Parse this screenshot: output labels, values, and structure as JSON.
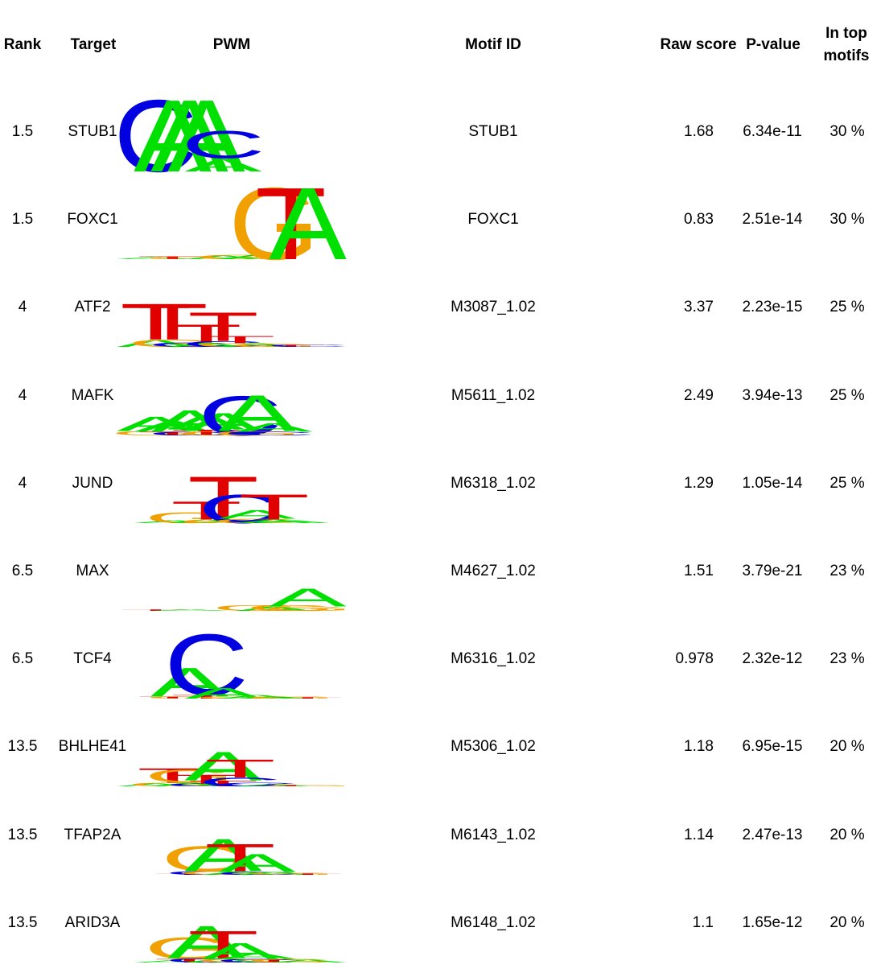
{
  "header": {
    "rank": "Rank",
    "target": "Target",
    "pwm": "PWM",
    "motif_id": "Motif ID",
    "raw_score": "Raw score",
    "p_value": "P-value",
    "in_top_line1": "In top",
    "in_top_line2": "motifs"
  },
  "colors": {
    "A": "#00e000",
    "C": "#0000e0",
    "G": "#f0a000",
    "T": "#e00000"
  },
  "rows": [
    {
      "rank": "1.5",
      "target": "STUB1",
      "motif_id": "STUB1",
      "raw_score": "1.68",
      "p_value": "6.34e-11",
      "in_top": "30 %",
      "pwm": [
        {
          "x": 0,
          "s": [
            [
              "C",
              1.0
            ]
          ]
        },
        {
          "x": 1,
          "s": [
            [
              "A",
              1.0
            ]
          ]
        },
        {
          "x": 2,
          "s": [
            [
              "A",
              1.0
            ]
          ]
        },
        {
          "x": 3,
          "s": [
            [
              "A",
              1.0
            ]
          ]
        },
        {
          "x": 4,
          "s": [
            [
              "A",
              0.18
            ],
            [
              "C",
              0.38
            ]
          ]
        }
      ]
    },
    {
      "rank": "1.5",
      "target": "FOXC1",
      "motif_id": "FOXC1",
      "raw_score": "0.83",
      "p_value": "2.51e-14",
      "in_top": "30 %",
      "pwm": [
        {
          "x": 0,
          "s": [
            [
              "A",
              0.03
            ]
          ]
        },
        {
          "x": 1,
          "s": [
            [
              "T",
              0.04
            ]
          ]
        },
        {
          "x": 2,
          "s": [
            [
              "G",
              0.03
            ]
          ]
        },
        {
          "x": 4,
          "s": [
            [
              "A",
              0.05
            ]
          ]
        },
        {
          "x": 5,
          "s": [
            [
              "G",
              0.06
            ]
          ]
        },
        {
          "x": 6,
          "s": [
            [
              "A",
              0.06
            ]
          ]
        },
        {
          "x": 7,
          "s": [
            [
              "G",
              1.0
            ]
          ]
        },
        {
          "x": 8,
          "s": [
            [
              "T",
              1.0
            ]
          ]
        },
        {
          "x": 9,
          "s": [
            [
              "A",
              1.0
            ]
          ]
        }
      ]
    },
    {
      "rank": "4",
      "target": "ATF2",
      "motif_id": "M3087_1.02",
      "raw_score": "3.37",
      "p_value": "2.23e-15",
      "in_top": "25 %",
      "pwm": [
        {
          "x": 0,
          "s": [
            [
              "A",
              0.1
            ],
            [
              "T",
              0.5
            ]
          ]
        },
        {
          "x": 1,
          "s": [
            [
              "G",
              0.1
            ],
            [
              "T",
              0.5
            ]
          ]
        },
        {
          "x": 2,
          "s": [
            [
              "C",
              0.06
            ]
          ]
        },
        {
          "x": 3,
          "s": [
            [
              "A",
              0.06
            ],
            [
              "T",
              0.25
            ]
          ]
        },
        {
          "x": 4,
          "s": [
            [
              "C",
              0.08
            ],
            [
              "T",
              0.4
            ]
          ]
        },
        {
          "x": 5,
          "s": [
            [
              "G",
              0.05
            ],
            [
              "T",
              0.1
            ]
          ]
        },
        {
          "x": 6,
          "s": [
            [
              "A",
              0.05
            ]
          ]
        },
        {
          "x": 7,
          "s": [
            [
              "G",
              0.04
            ]
          ]
        },
        {
          "x": 8,
          "s": [
            [
              "T",
              0.03
            ]
          ]
        },
        {
          "x": 9,
          "s": [
            [
              "C",
              0.03
            ]
          ]
        }
      ]
    },
    {
      "rank": "4",
      "target": "MAFK",
      "motif_id": "M5611_1.02",
      "raw_score": "2.49",
      "p_value": "3.94e-13",
      "in_top": "25 %",
      "pwm": [
        {
          "x": 0,
          "s": [
            [
              "G",
              0.06
            ],
            [
              "A",
              0.2
            ]
          ]
        },
        {
          "x": 1,
          "s": [
            [
              "T",
              0.05
            ],
            [
              "A",
              0.15
            ]
          ]
        },
        {
          "x": 2,
          "s": [
            [
              "C",
              0.05
            ],
            [
              "A",
              0.3
            ]
          ]
        },
        {
          "x": 3,
          "s": [
            [
              "T",
              0.08
            ],
            [
              "A",
              0.2
            ]
          ]
        },
        {
          "x": 4,
          "s": [
            [
              "G",
              0.06
            ],
            [
              "A",
              0.25
            ]
          ]
        },
        {
          "x": 5,
          "s": [
            [
              "C",
              0.55
            ]
          ]
        },
        {
          "x": 6,
          "s": [
            [
              "G",
              0.06
            ],
            [
              "A",
              0.5
            ]
          ]
        },
        {
          "x": 7,
          "s": [
            [
              "C",
              0.05
            ],
            [
              "A",
              0.12
            ]
          ]
        }
      ]
    },
    {
      "rank": "4",
      "target": "JUND",
      "motif_id": "M6318_1.02",
      "raw_score": "1.29",
      "p_value": "1.05e-14",
      "in_top": "25 %",
      "pwm": [
        {
          "x": 1,
          "s": [
            [
              "A",
              0.04
            ]
          ]
        },
        {
          "x": 2,
          "s": [
            [
              "G",
              0.15
            ]
          ]
        },
        {
          "x": 3,
          "s": [
            [
              "A",
              0.05
            ],
            [
              "T",
              0.25
            ]
          ]
        },
        {
          "x": 4,
          "s": [
            [
              "G",
              0.05
            ],
            [
              "T",
              0.6
            ]
          ]
        },
        {
          "x": 5,
          "s": [
            [
              "C",
              0.4
            ]
          ]
        },
        {
          "x": 6,
          "s": [
            [
              "G",
              0.06
            ],
            [
              "A",
              0.12
            ]
          ]
        },
        {
          "x": 7,
          "s": [
            [
              "A",
              0.05
            ],
            [
              "T",
              0.35
            ]
          ]
        },
        {
          "x": 8,
          "s": [
            [
              "A",
              0.04
            ]
          ]
        }
      ]
    },
    {
      "rank": "6.5",
      "target": "MAX",
      "motif_id": "M4627_1.02",
      "raw_score": "1.51",
      "p_value": "3.79e-21",
      "in_top": "23 %",
      "pwm": [
        {
          "x": 0,
          "s": [
            [
              "T",
              0.02
            ]
          ]
        },
        {
          "x": 2,
          "s": [
            [
              "A",
              0.02
            ]
          ]
        },
        {
          "x": 6,
          "s": [
            [
              "G",
              0.08
            ]
          ]
        },
        {
          "x": 7,
          "s": [
            [
              "A",
              0.06
            ]
          ]
        },
        {
          "x": 8,
          "s": [
            [
              "G",
              0.08
            ]
          ]
        },
        {
          "x": 9,
          "s": [
            [
              "G",
              0.06
            ],
            [
              "A",
              0.25
            ]
          ]
        }
      ]
    },
    {
      "rank": "6.5",
      "target": "TCF4",
      "motif_id": "M6316_1.02",
      "raw_score": "0.978",
      "p_value": "2.32e-12",
      "in_top": "23 %",
      "pwm": [
        {
          "x": 1,
          "s": [
            [
              "T",
              0.03
            ]
          ]
        },
        {
          "x": 2,
          "s": [
            [
              "G",
              0.03
            ],
            [
              "A",
              0.4
            ]
          ]
        },
        {
          "x": 3,
          "s": [
            [
              "T",
              0.05
            ],
            [
              "C",
              0.85
            ]
          ]
        },
        {
          "x": 4,
          "s": [
            [
              "A",
              0.15
            ]
          ]
        },
        {
          "x": 5,
          "s": [
            [
              "G",
              0.03
            ]
          ]
        },
        {
          "x": 6,
          "s": [
            [
              "A",
              0.05
            ]
          ]
        },
        {
          "x": 7,
          "s": [
            [
              "A",
              0.03
            ]
          ]
        },
        {
          "x": 8,
          "s": [
            [
              "G",
              0.03
            ]
          ]
        },
        {
          "x": 9,
          "s": [
            [
              "T",
              0.02
            ]
          ]
        }
      ]
    },
    {
      "rank": "13.5",
      "target": "BHLHE41",
      "motif_id": "M5306_1.02",
      "raw_score": "1.18",
      "p_value": "6.95e-15",
      "in_top": "20 %",
      "pwm": [
        {
          "x": 0,
          "s": [
            [
              "A",
              0.04
            ]
          ]
        },
        {
          "x": 1,
          "s": [
            [
              "G",
              0.05
            ],
            [
              "T",
              0.2
            ]
          ]
        },
        {
          "x": 2,
          "s": [
            [
              "A",
              0.05
            ],
            [
              "G",
              0.18
            ]
          ]
        },
        {
          "x": 3,
          "s": [
            [
              "C",
              0.04
            ],
            [
              "T",
              0.12
            ]
          ]
        },
        {
          "x": 4,
          "s": [
            [
              "T",
              0.08
            ],
            [
              "A",
              0.4
            ]
          ]
        },
        {
          "x": 5,
          "s": [
            [
              "C",
              0.12
            ],
            [
              "T",
              0.25
            ]
          ]
        },
        {
          "x": 6,
          "s": [
            [
              "C",
              0.05
            ]
          ]
        },
        {
          "x": 7,
          "s": [
            [
              "A",
              0.03
            ]
          ]
        },
        {
          "x": 8,
          "s": [
            [
              "T",
              0.02
            ]
          ]
        },
        {
          "x": 9,
          "s": [
            [
              "G",
              0.02
            ]
          ]
        }
      ]
    },
    {
      "rank": "13.5",
      "target": "TFAP2A",
      "motif_id": "M6143_1.02",
      "raw_score": "1.14",
      "p_value": "2.47e-13",
      "in_top": "20 %",
      "pwm": [
        {
          "x": 2,
          "s": [
            [
              "T",
              0.02
            ]
          ]
        },
        {
          "x": 3,
          "s": [
            [
              "C",
              0.05
            ],
            [
              "G",
              0.35
            ]
          ]
        },
        {
          "x": 4,
          "s": [
            [
              "G",
              0.05
            ],
            [
              "A",
              0.45
            ]
          ]
        },
        {
          "x": 5,
          "s": [
            [
              "A",
              0.05
            ],
            [
              "T",
              0.38
            ]
          ]
        },
        {
          "x": 6,
          "s": [
            [
              "C",
              0.04
            ],
            [
              "A",
              0.25
            ]
          ]
        },
        {
          "x": 7,
          "s": [
            [
              "A",
              0.04
            ]
          ]
        },
        {
          "x": 8,
          "s": [
            [
              "G",
              0.03
            ]
          ]
        },
        {
          "x": 9,
          "s": [
            [
              "T",
              0.02
            ]
          ]
        }
      ]
    },
    {
      "rank": "13.5",
      "target": "ARID3A",
      "motif_id": "M6148_1.02",
      "raw_score": "1.1",
      "p_value": "1.65e-12",
      "in_top": "20 %",
      "pwm": [
        {
          "x": 1,
          "s": [
            [
              "A",
              0.03
            ]
          ]
        },
        {
          "x": 2,
          "s": [
            [
              "T",
              0.05
            ],
            [
              "G",
              0.3
            ]
          ]
        },
        {
          "x": 3,
          "s": [
            [
              "C",
              0.06
            ],
            [
              "A",
              0.45
            ]
          ]
        },
        {
          "x": 4,
          "s": [
            [
              "A",
              0.06
            ],
            [
              "T",
              0.38
            ]
          ]
        },
        {
          "x": 5,
          "s": [
            [
              "G",
              0.05
            ],
            [
              "A",
              0.22
            ]
          ]
        },
        {
          "x": 6,
          "s": [
            [
              "C",
              0.05
            ],
            [
              "A",
              0.08
            ]
          ]
        },
        {
          "x": 7,
          "s": [
            [
              "T",
              0.04
            ]
          ]
        },
        {
          "x": 8,
          "s": [
            [
              "G",
              0.05
            ]
          ]
        },
        {
          "x": 9,
          "s": [
            [
              "A",
              0.04
            ]
          ]
        }
      ]
    }
  ]
}
